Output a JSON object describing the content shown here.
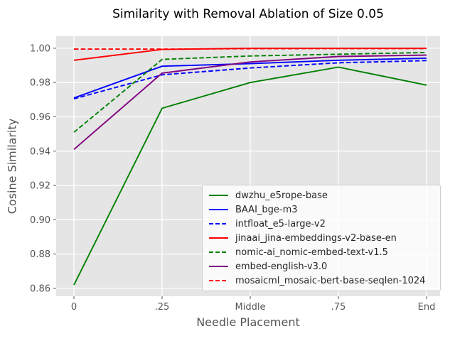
{
  "chart_data": {
    "type": "line",
    "title": "Similarity with Removal Ablation of Size 0.05",
    "xlabel": "Needle Placement",
    "ylabel": "Cosine Similarity",
    "categories": [
      "0",
      ".25",
      "Middle",
      ".75",
      "End"
    ],
    "y_tick_labels": [
      "0.86",
      "0.88",
      "0.90",
      "0.92",
      "0.94",
      "0.96",
      "0.98",
      "1.00"
    ],
    "y_tick_values": [
      0.86,
      0.88,
      0.9,
      0.92,
      0.94,
      0.96,
      0.98,
      1.0
    ],
    "ylim": [
      0.8554,
      1.007
    ],
    "grid": true,
    "legend_position": "lower-right-inside",
    "series": [
      {
        "name": "dwzhu_e5rope-base",
        "color": "#008000",
        "dash": "solid",
        "values": [
          0.862,
          0.965,
          0.98,
          0.989,
          0.9785
        ]
      },
      {
        "name": "BAAI_bge-m3",
        "color": "#0000ff",
        "dash": "solid",
        "values": [
          0.971,
          0.9895,
          0.991,
          0.993,
          0.9942
        ]
      },
      {
        "name": "intfloat_e5-large-v2",
        "color": "#0000ff",
        "dash": "dashed",
        "values": [
          0.9705,
          0.9845,
          0.9885,
          0.9915,
          0.9928
        ]
      },
      {
        "name": "jinaai_jina-embeddings-v2-base-en",
        "color": "#ff0000",
        "dash": "solid",
        "values": [
          0.993,
          0.9993,
          1.0,
          1.0,
          1.0
        ]
      },
      {
        "name": "nomic-ai_nomic-embed-text-v1.5",
        "color": "#008000",
        "dash": "dashed",
        "values": [
          0.951,
          0.9935,
          0.9955,
          0.9965,
          0.9975
        ]
      },
      {
        "name": "embed-english-v3.0",
        "color": "#800080",
        "dash": "solid",
        "values": [
          0.941,
          0.9855,
          0.992,
          0.9952,
          0.996
        ]
      },
      {
        "name": "mosaicml_mosaic-bert-base-seqlen-1024",
        "color": "#ff0000",
        "dash": "dashed",
        "values": [
          0.9995,
          0.9995,
          0.9997,
          0.9998,
          0.9998
        ]
      }
    ],
    "theme": {
      "figure_bg": "#ffffff",
      "axes_bg": "#e5e5e5",
      "grid_color": "#ffffff",
      "tick_color": "#555555",
      "tick_label_color": "#555555",
      "axis_label_color": "#555555",
      "title_color": "#000000",
      "legend_bg": "rgba(255,255,255,0.8)",
      "legend_border": "#cccccc",
      "legend_text_color": "#262626"
    }
  }
}
